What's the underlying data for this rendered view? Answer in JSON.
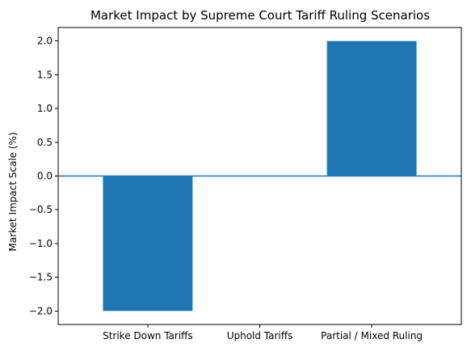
{
  "chart_data": {
    "type": "bar",
    "title": "Market Impact by Supreme Court Tariff Ruling Scenarios",
    "xlabel": "",
    "ylabel": "Market Impact Scale (%)",
    "categories": [
      "Strike Down Tariffs",
      "Uphold Tariffs",
      "Partial / Mixed Ruling"
    ],
    "values": [
      -2.0,
      0.0,
      2.0
    ],
    "ylim": [
      -2.2,
      2.2
    ],
    "yticks": [
      -2.0,
      -1.5,
      -1.0,
      -0.5,
      0.0,
      0.5,
      1.0,
      1.5,
      2.0
    ],
    "ytick_labels": [
      "−2.0",
      "−1.5",
      "−1.0",
      "−0.5",
      "0.0",
      "0.5",
      "1.0",
      "1.5",
      "2.0"
    ],
    "baseline": 0,
    "grid": false,
    "bar_color": "#1f77b4",
    "baseline_color": "#1f77b4"
  }
}
